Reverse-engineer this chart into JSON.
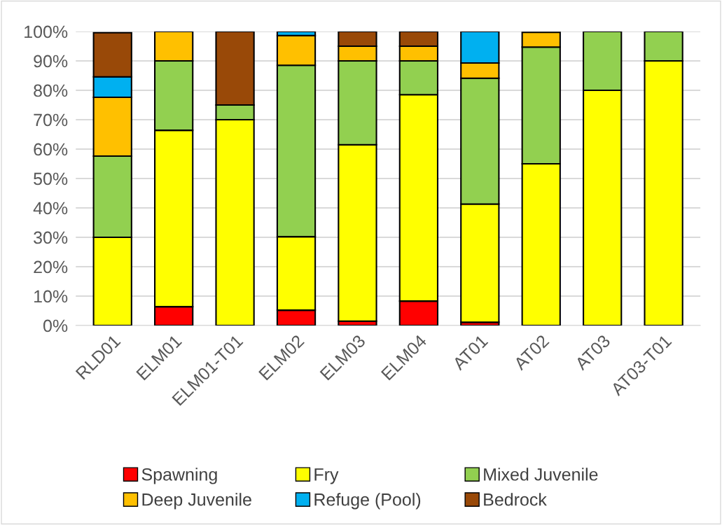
{
  "chart_data": {
    "type": "bar",
    "stacked": true,
    "categories": [
      "RLD01",
      "ELM01",
      "ELM01-T01",
      "ELM02",
      "ELM03",
      "ELM04",
      "AT01",
      "AT02",
      "AT03",
      "AT03-T01"
    ],
    "series": [
      {
        "name": "Spawning",
        "color": "#ff0000",
        "values": [
          null,
          6.4,
          0,
          5.2,
          1.5,
          8.3,
          1.1,
          null,
          0,
          0
        ]
      },
      {
        "name": "Fry",
        "color": "#ffff00",
        "values": [
          30,
          60,
          70,
          25,
          60,
          70.2,
          40.2,
          55,
          80,
          90
        ]
      },
      {
        "name": "Mixed Juvenile",
        "color": "#92d050",
        "values": [
          27.6,
          23.6,
          5,
          58.3,
          28.5,
          11.5,
          42.8,
          39.7,
          20,
          10
        ]
      },
      {
        "name": "Deep Juvenile",
        "color": "#ffc000",
        "values": [
          20,
          10,
          0,
          10.1,
          5,
          5,
          5.2,
          5,
          0,
          0
        ]
      },
      {
        "name": "Refuge (Pool)",
        "color": "#00b0f0",
        "values": [
          7,
          0,
          0,
          1.4,
          0,
          0,
          10.7,
          0,
          0,
          0
        ]
      },
      {
        "name": "Bedrock",
        "color": "#994908",
        "values": [
          15,
          0,
          25,
          0,
          5,
          5,
          0,
          0,
          0,
          0
        ]
      }
    ],
    "ylim": [
      0,
      100
    ],
    "yticks": [
      {
        "value": 0,
        "label": "0%"
      },
      {
        "value": 10,
        "label": "10%"
      },
      {
        "value": 20,
        "label": "20%"
      },
      {
        "value": 30,
        "label": "30%"
      },
      {
        "value": 40,
        "label": "40%"
      },
      {
        "value": 50,
        "label": "50%"
      },
      {
        "value": 60,
        "label": "60%"
      },
      {
        "value": 70,
        "label": "70%"
      },
      {
        "value": 80,
        "label": "80%"
      },
      {
        "value": 90,
        "label": "90%"
      },
      {
        "value": 100,
        "label": "100%"
      }
    ],
    "grid": "y",
    "legend": "bottom"
  }
}
